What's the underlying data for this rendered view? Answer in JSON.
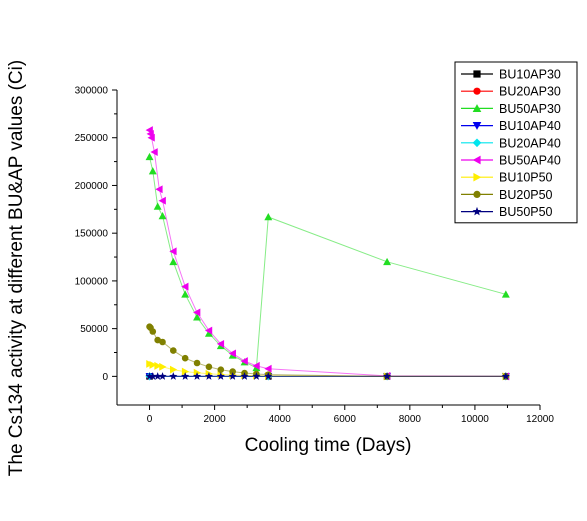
{
  "chart_data": {
    "type": "line",
    "title": "",
    "xlabel": "Cooling time (Days)",
    "ylabel": "The Cs134 activity at different BU&AP values (Ci)",
    "xlim": [
      -1000,
      12000
    ],
    "ylim": [
      -30000,
      300000
    ],
    "x_ticks": [
      0,
      2000,
      4000,
      6000,
      8000,
      10000,
      12000
    ],
    "y_ticks": [
      0,
      50000,
      100000,
      150000,
      200000,
      250000,
      300000
    ],
    "x_tick_labels": [
      "0",
      "2000",
      "4000",
      "6000",
      "8000",
      "10000",
      "12000"
    ],
    "y_tick_labels": [
      "0",
      "50000",
      "100000",
      "150000",
      "200000",
      "250000",
      "300000"
    ],
    "legend_position": "top-right",
    "series": [
      {
        "name": "BU10AP30",
        "color": "#000000",
        "marker": "square",
        "points": [
          [
            0,
            0
          ],
          [
            3650,
            0
          ],
          [
            7300,
            0
          ],
          [
            10950,
            0
          ]
        ]
      },
      {
        "name": "BU20AP30",
        "color": "#ff0000",
        "marker": "circle",
        "points": [
          [
            0,
            0
          ],
          [
            3650,
            0
          ],
          [
            7300,
            0
          ],
          [
            10950,
            0
          ]
        ]
      },
      {
        "name": "BU50AP30",
        "color": "#22dd22",
        "marker": "triangle-up",
        "points": [
          [
            0,
            230000
          ],
          [
            100,
            215000
          ],
          [
            250,
            178000
          ],
          [
            400,
            168000
          ],
          [
            730,
            120000
          ],
          [
            1095,
            86000
          ],
          [
            1460,
            62000
          ],
          [
            1825,
            45000
          ],
          [
            2190,
            32000
          ],
          [
            2555,
            22000
          ],
          [
            2920,
            15000
          ],
          [
            3285,
            9000
          ],
          [
            3650,
            167000
          ],
          [
            7300,
            120000
          ],
          [
            10950,
            86000
          ]
        ]
      },
      {
        "name": "BU10AP40",
        "color": "#0000ee",
        "marker": "triangle-down",
        "points": [
          [
            0,
            0
          ],
          [
            3650,
            0
          ],
          [
            7300,
            0
          ],
          [
            10950,
            0
          ]
        ]
      },
      {
        "name": "BU20AP40",
        "color": "#00e5ee",
        "marker": "diamond",
        "points": [
          [
            0,
            0
          ],
          [
            3650,
            0
          ],
          [
            7300,
            0
          ],
          [
            10950,
            0
          ]
        ]
      },
      {
        "name": "BU50AP40",
        "color": "#ee00ee",
        "marker": "triangle-left",
        "points": [
          [
            0,
            258000
          ],
          [
            30,
            254000
          ],
          [
            60,
            250000
          ],
          [
            150,
            235000
          ],
          [
            300,
            196000
          ],
          [
            400,
            184000
          ],
          [
            730,
            131000
          ],
          [
            1095,
            94000
          ],
          [
            1460,
            67000
          ],
          [
            1825,
            48000
          ],
          [
            2190,
            34000
          ],
          [
            2555,
            24000
          ],
          [
            2920,
            16000
          ],
          [
            3285,
            11000
          ],
          [
            3650,
            8000
          ],
          [
            7300,
            500
          ],
          [
            10950,
            0
          ]
        ]
      },
      {
        "name": "BU10P50",
        "color": "#ffee00",
        "marker": "triangle-right",
        "points": [
          [
            0,
            13000
          ],
          [
            100,
            12000
          ],
          [
            250,
            11000
          ],
          [
            400,
            10000
          ],
          [
            730,
            7000
          ],
          [
            1095,
            5000
          ],
          [
            1460,
            3800
          ],
          [
            1825,
            2700
          ],
          [
            2190,
            2000
          ],
          [
            2555,
            1400
          ],
          [
            2920,
            1000
          ],
          [
            3285,
            700
          ],
          [
            3650,
            500
          ],
          [
            7300,
            0
          ],
          [
            10950,
            0
          ]
        ]
      },
      {
        "name": "BU20P50",
        "color": "#808000",
        "marker": "circle",
        "points": [
          [
            0,
            52000
          ],
          [
            30,
            51000
          ],
          [
            100,
            47000
          ],
          [
            250,
            38000
          ],
          [
            400,
            36000
          ],
          [
            730,
            27000
          ],
          [
            1095,
            19000
          ],
          [
            1460,
            14000
          ],
          [
            1825,
            10000
          ],
          [
            2190,
            7000
          ],
          [
            2555,
            5000
          ],
          [
            2920,
            3500
          ],
          [
            3285,
            2500
          ],
          [
            3650,
            1800
          ],
          [
            7300,
            0
          ],
          [
            10950,
            0
          ]
        ]
      },
      {
        "name": "BU50P50",
        "color": "#000080",
        "marker": "star",
        "points": [
          [
            0,
            0
          ],
          [
            100,
            0
          ],
          [
            250,
            0
          ],
          [
            400,
            0
          ],
          [
            730,
            0
          ],
          [
            1095,
            0
          ],
          [
            1460,
            0
          ],
          [
            1825,
            0
          ],
          [
            2190,
            0
          ],
          [
            2555,
            0
          ],
          [
            2920,
            0
          ],
          [
            3285,
            0
          ],
          [
            3650,
            0
          ],
          [
            7300,
            0
          ],
          [
            10950,
            0
          ]
        ]
      }
    ]
  }
}
